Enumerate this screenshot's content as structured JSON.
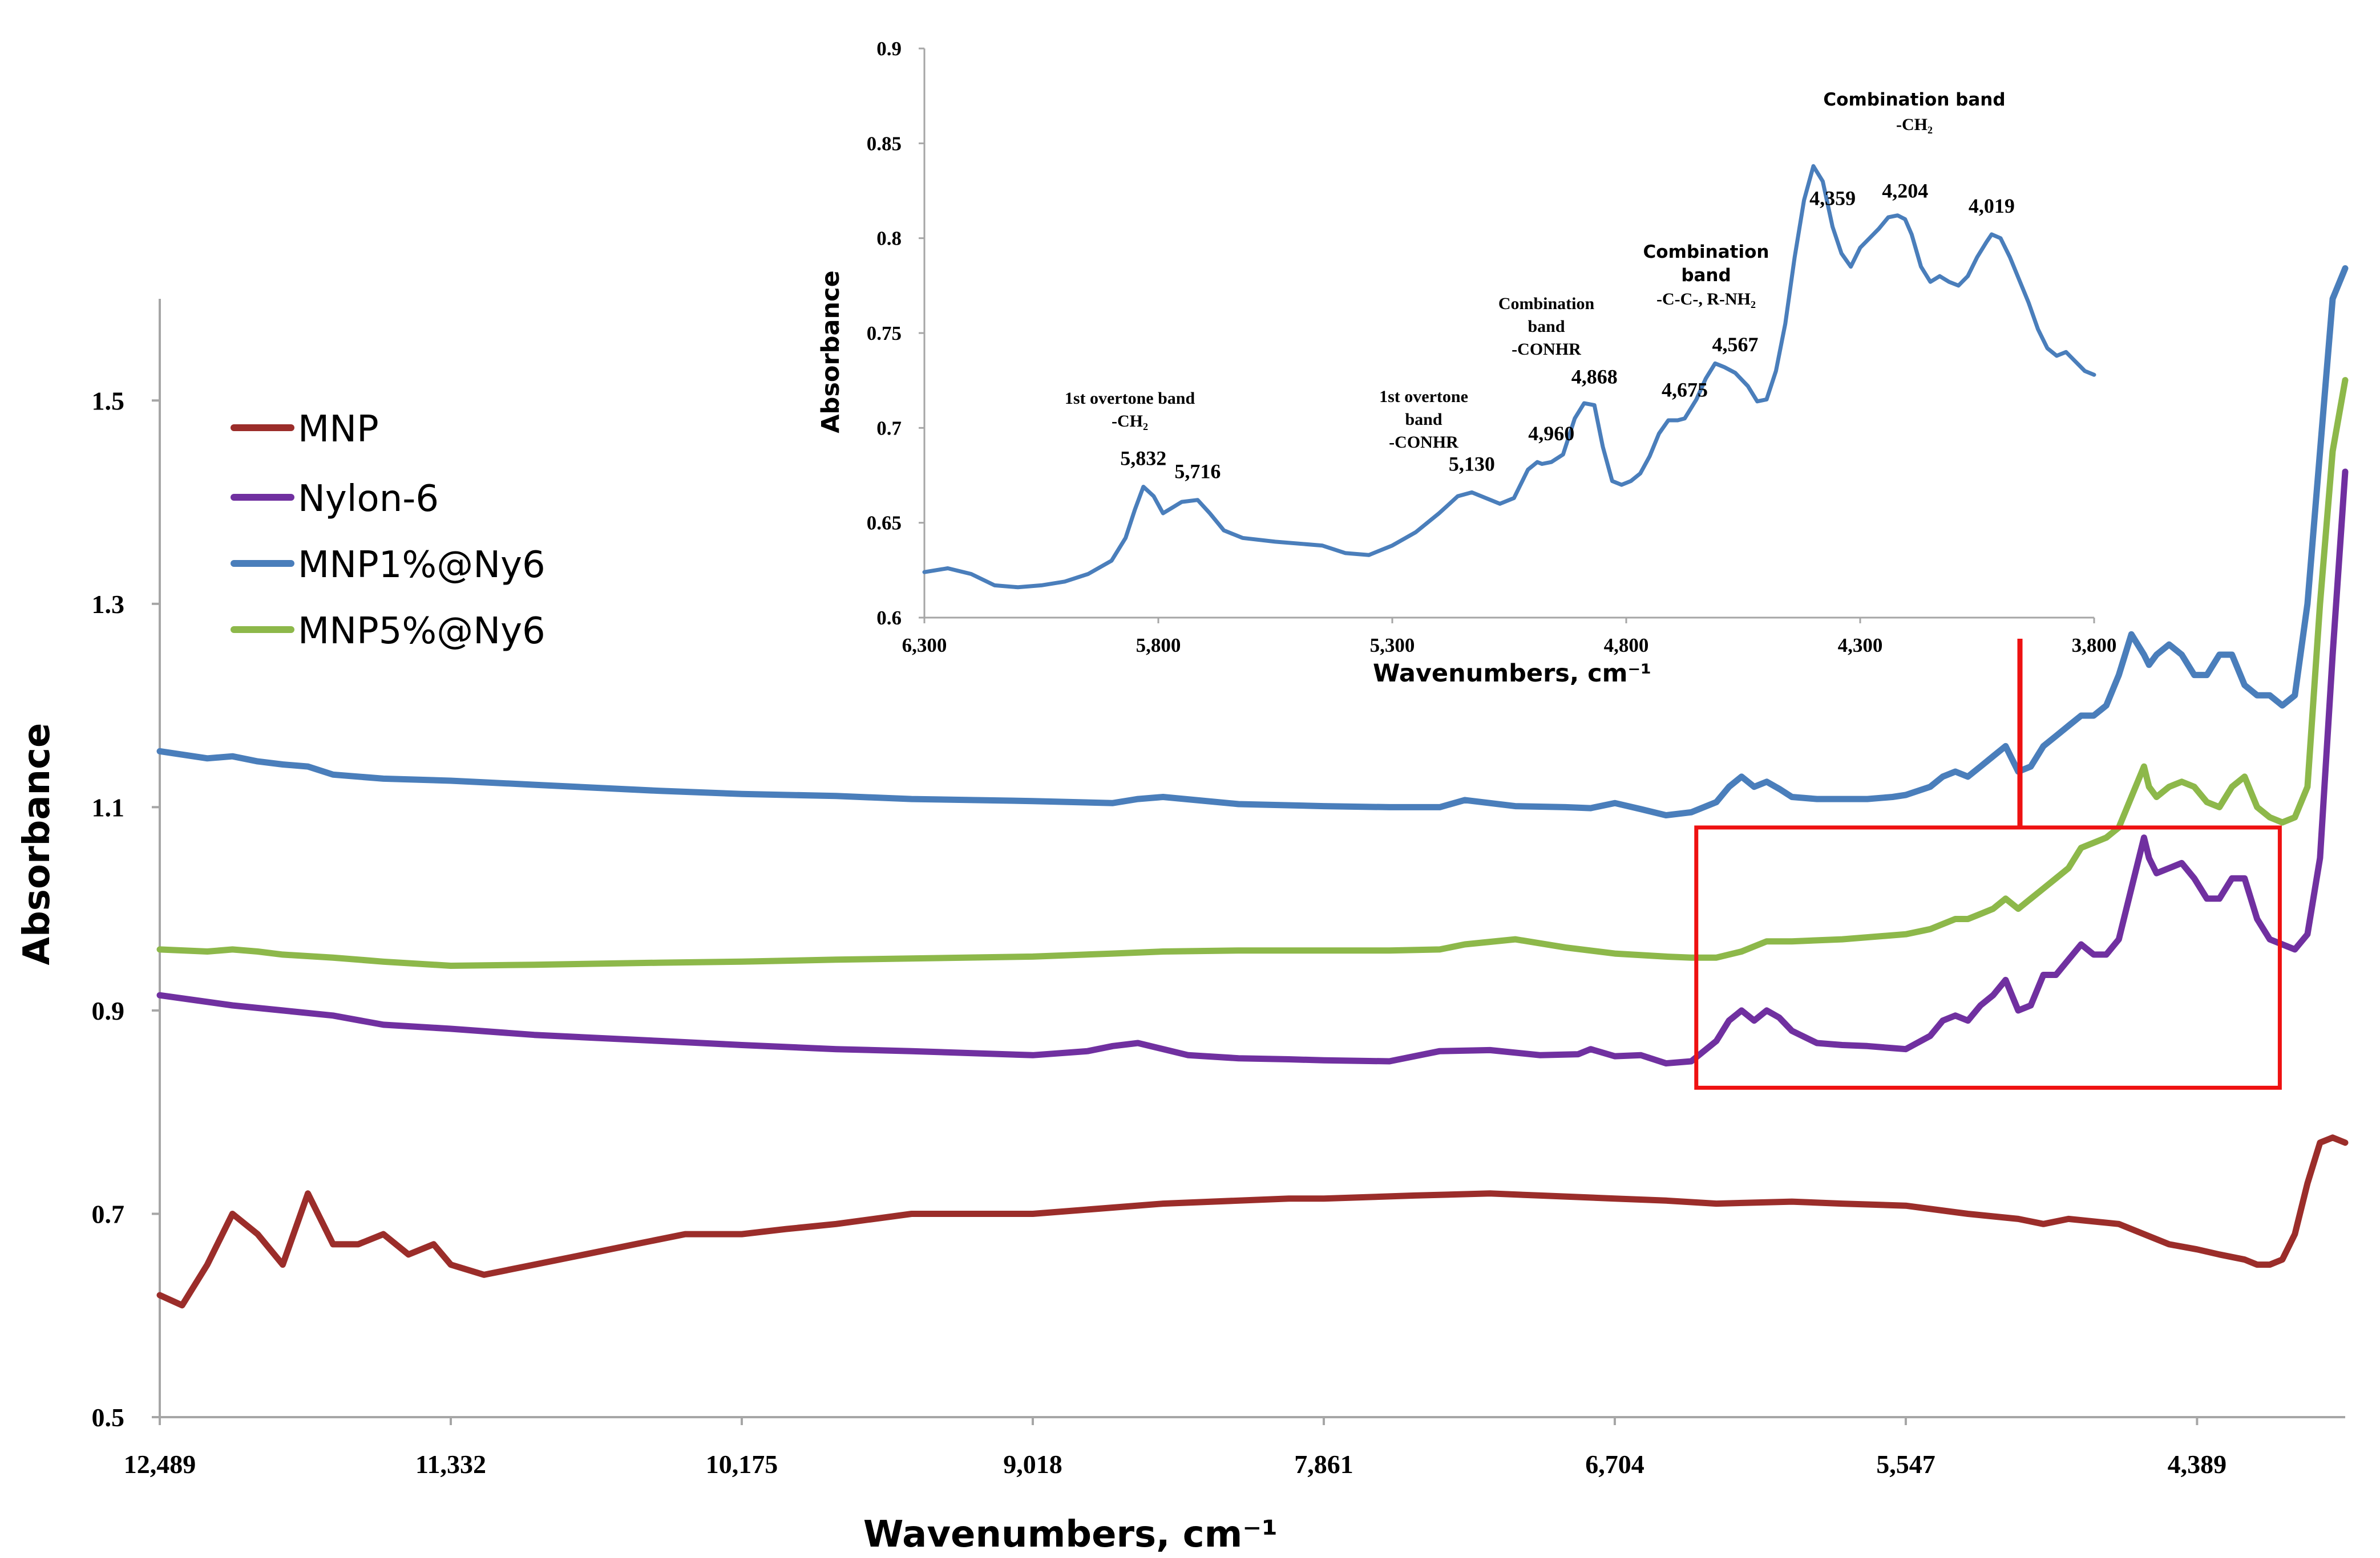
{
  "colors": {
    "MNP": "#9b2d2a",
    "Nylon-6": "#7030a0",
    "MNP1%@Ny6": "#4a7ebb",
    "MNP5%@Ny6": "#8db84a",
    "highlight": "#ee1111",
    "axis": "#a6a6a6"
  },
  "chart_data": [
    {
      "type": "line",
      "panel": "main",
      "xlabel": "Wavenumbers, cm⁻¹",
      "ylabel": "Absorbance",
      "xlim": [
        12489,
        3800
      ],
      "ylim": [
        0.5,
        1.6
      ],
      "x_ticks": [
        "12,489",
        "11,332",
        "10,175",
        "9,018",
        "7,861",
        "6,704",
        "5,547",
        "4,389"
      ],
      "y_ticks": [
        "0.5",
        "0.7",
        "0.9",
        "1.1",
        "1.3",
        "1.5"
      ],
      "legend_position": "top-left",
      "highlight_box": {
        "x_range": [
          6380,
          4060
        ],
        "y_range": [
          0.824,
          1.08
        ]
      },
      "series": [
        {
          "name": "MNP",
          "x": [
            12489,
            12400,
            12300,
            12200,
            12100,
            12000,
            11900,
            11800,
            11700,
            11600,
            11500,
            11400,
            11332,
            11200,
            11000,
            10800,
            10600,
            10400,
            10175,
            10000,
            9800,
            9500,
            9018,
            8500,
            8000,
            7861,
            7500,
            7200,
            7000,
            6704,
            6500,
            6300,
            6000,
            5800,
            5547,
            5300,
            5100,
            5000,
            4900,
            4700,
            4500,
            4389,
            4300,
            4200,
            4150,
            4100,
            4050,
            4000,
            3950,
            3900,
            3850,
            3800
          ],
          "y": [
            0.62,
            0.61,
            0.65,
            0.7,
            0.68,
            0.65,
            0.72,
            0.67,
            0.67,
            0.68,
            0.66,
            0.67,
            0.65,
            0.64,
            0.65,
            0.66,
            0.67,
            0.68,
            0.68,
            0.685,
            0.69,
            0.7,
            0.7,
            0.71,
            0.715,
            0.715,
            0.718,
            0.72,
            0.718,
            0.715,
            0.713,
            0.71,
            0.712,
            0.71,
            0.708,
            0.7,
            0.695,
            0.69,
            0.695,
            0.69,
            0.67,
            0.665,
            0.66,
            0.655,
            0.65,
            0.65,
            0.655,
            0.68,
            0.73,
            0.77,
            0.775,
            0.77
          ]
        },
        {
          "name": "Nylon-6",
          "x": [
            12489,
            12200,
            12000,
            11800,
            11600,
            11332,
            11000,
            10500,
            10175,
            9800,
            9500,
            9018,
            8800,
            8700,
            8600,
            8400,
            8200,
            8000,
            7861,
            7600,
            7400,
            7200,
            7000,
            6850,
            6800,
            6704,
            6600,
            6500,
            6400,
            6300,
            6250,
            6200,
            6150,
            6100,
            6050,
            6000,
            5900,
            5800,
            5700,
            5600,
            5547,
            5450,
            5400,
            5350,
            5300,
            5250,
            5200,
            5150,
            5100,
            5050,
            5000,
            4950,
            4900,
            4850,
            4800,
            4750,
            4700,
            4650,
            4600,
            4580,
            4550,
            4500,
            4450,
            4400,
            4350,
            4300,
            4250,
            4200,
            4150,
            4100,
            4050,
            4000,
            3950,
            3900,
            3850,
            3800
          ],
          "y": [
            0.915,
            0.905,
            0.9,
            0.895,
            0.886,
            0.882,
            0.876,
            0.87,
            0.866,
            0.862,
            0.86,
            0.856,
            0.86,
            0.865,
            0.868,
            0.856,
            0.853,
            0.852,
            0.851,
            0.85,
            0.86,
            0.861,
            0.856,
            0.857,
            0.862,
            0.855,
            0.856,
            0.848,
            0.85,
            0.87,
            0.89,
            0.9,
            0.89,
            0.9,
            0.893,
            0.88,
            0.868,
            0.866,
            0.865,
            0.863,
            0.862,
            0.875,
            0.89,
            0.895,
            0.89,
            0.905,
            0.915,
            0.93,
            0.9,
            0.905,
            0.935,
            0.935,
            0.95,
            0.965,
            0.955,
            0.955,
            0.97,
            1.02,
            1.07,
            1.05,
            1.035,
            1.04,
            1.045,
            1.03,
            1.01,
            1.01,
            1.03,
            1.03,
            0.99,
            0.97,
            0.965,
            0.96,
            0.975,
            1.05,
            1.25,
            1.43
          ]
        },
        {
          "name": "MNP1%@Ny6",
          "x": [
            12489,
            12300,
            12200,
            12100,
            12000,
            11900,
            11800,
            11600,
            11332,
            11000,
            10500,
            10175,
            9800,
            9500,
            9018,
            8700,
            8600,
            8500,
            8200,
            7861,
            7600,
            7400,
            7300,
            7100,
            6900,
            6800,
            6704,
            6600,
            6500,
            6400,
            6300,
            6250,
            6200,
            6150,
            6100,
            6050,
            6000,
            5900,
            5800,
            5700,
            5600,
            5547,
            5450,
            5400,
            5350,
            5300,
            5250,
            5200,
            5150,
            5100,
            5050,
            5000,
            4950,
            4900,
            4850,
            4800,
            4750,
            4700,
            4650,
            4600,
            4580,
            4550,
            4500,
            4450,
            4400,
            4350,
            4300,
            4250,
            4200,
            4150,
            4100,
            4050,
            4000,
            3950,
            3900,
            3850,
            3800
          ],
          "y": [
            1.155,
            1.148,
            1.15,
            1.145,
            1.142,
            1.14,
            1.132,
            1.128,
            1.126,
            1.122,
            1.116,
            1.113,
            1.111,
            1.108,
            1.106,
            1.104,
            1.108,
            1.11,
            1.103,
            1.101,
            1.1,
            1.1,
            1.107,
            1.101,
            1.1,
            1.099,
            1.104,
            1.098,
            1.092,
            1.095,
            1.105,
            1.12,
            1.13,
            1.12,
            1.125,
            1.118,
            1.11,
            1.108,
            1.108,
            1.108,
            1.11,
            1.112,
            1.12,
            1.13,
            1.135,
            1.13,
            1.14,
            1.15,
            1.16,
            1.135,
            1.14,
            1.16,
            1.17,
            1.18,
            1.19,
            1.19,
            1.2,
            1.23,
            1.27,
            1.25,
            1.24,
            1.25,
            1.26,
            1.25,
            1.23,
            1.23,
            1.25,
            1.25,
            1.22,
            1.21,
            1.21,
            1.2,
            1.21,
            1.3,
            1.45,
            1.6,
            1.63
          ]
        },
        {
          "name": "MNP5%@Ny6",
          "x": [
            12489,
            12300,
            12200,
            12100,
            12000,
            11800,
            11600,
            11332,
            11000,
            10500,
            10175,
            9800,
            9018,
            8700,
            8500,
            8200,
            7861,
            7600,
            7400,
            7300,
            7100,
            6900,
            6704,
            6500,
            6400,
            6300,
            6200,
            6100,
            6000,
            5800,
            5547,
            5450,
            5400,
            5350,
            5300,
            5250,
            5200,
            5150,
            5100,
            5050,
            5000,
            4950,
            4900,
            4850,
            4800,
            4750,
            4700,
            4650,
            4600,
            4580,
            4550,
            4500,
            4450,
            4400,
            4350,
            4300,
            4250,
            4200,
            4150,
            4100,
            4050,
            4000,
            3950,
            3900,
            3850,
            3800
          ],
          "y": [
            0.96,
            0.958,
            0.96,
            0.958,
            0.955,
            0.952,
            0.948,
            0.944,
            0.945,
            0.947,
            0.948,
            0.95,
            0.953,
            0.956,
            0.958,
            0.959,
            0.959,
            0.959,
            0.96,
            0.965,
            0.97,
            0.962,
            0.956,
            0.953,
            0.952,
            0.952,
            0.958,
            0.968,
            0.968,
            0.97,
            0.975,
            0.98,
            0.985,
            0.99,
            0.99,
            0.995,
            1.0,
            1.01,
            1.0,
            1.01,
            1.02,
            1.03,
            1.04,
            1.06,
            1.065,
            1.07,
            1.08,
            1.11,
            1.14,
            1.12,
            1.11,
            1.12,
            1.125,
            1.12,
            1.105,
            1.1,
            1.12,
            1.13,
            1.1,
            1.09,
            1.085,
            1.09,
            1.12,
            1.3,
            1.45,
            1.52
          ]
        }
      ]
    },
    {
      "type": "line",
      "panel": "inset",
      "xlabel": "Wavenumbers, cm⁻¹",
      "ylabel": "Absorbance",
      "xlim": [
        6300,
        3800
      ],
      "ylim": [
        0.6,
        0.9
      ],
      "x_ticks": [
        "6,300",
        "5,800",
        "5,300",
        "4,800",
        "4,300",
        "3,800"
      ],
      "x_tick_values": [
        6300,
        5800,
        5300,
        4800,
        4300,
        3800
      ],
      "y_ticks": [
        "0.6",
        "0.65",
        "0.7",
        "0.75",
        "0.8",
        "0.85",
        "0.9"
      ],
      "y_tick_values": [
        0.6,
        0.65,
        0.7,
        0.75,
        0.8,
        0.85,
        0.9
      ],
      "series": [
        {
          "name": "MNP1%@Ny6",
          "x": [
            6300,
            6250,
            6200,
            6150,
            6100,
            6050,
            6000,
            5950,
            5900,
            5870,
            5850,
            5832,
            5810,
            5790,
            5770,
            5750,
            5716,
            5690,
            5660,
            5620,
            5550,
            5450,
            5400,
            5350,
            5300,
            5250,
            5200,
            5160,
            5130,
            5100,
            5070,
            5040,
            5010,
            4990,
            4980,
            4960,
            4935,
            4910,
            4890,
            4868,
            4850,
            4830,
            4810,
            4790,
            4770,
            4750,
            4730,
            4710,
            4690,
            4675,
            4650,
            4630,
            4610,
            4590,
            4567,
            4540,
            4520,
            4500,
            4480,
            4460,
            4440,
            4420,
            4400,
            4380,
            4359,
            4340,
            4320,
            4300,
            4280,
            4260,
            4240,
            4220,
            4204,
            4190,
            4170,
            4150,
            4130,
            4110,
            4090,
            4070,
            4050,
            4030,
            4019,
            4000,
            3980,
            3960,
            3940,
            3920,
            3900,
            3880,
            3860,
            3840,
            3820,
            3800
          ],
          "y": [
            0.624,
            0.626,
            0.623,
            0.617,
            0.616,
            0.617,
            0.619,
            0.623,
            0.63,
            0.642,
            0.657,
            0.669,
            0.664,
            0.655,
            0.658,
            0.661,
            0.662,
            0.655,
            0.646,
            0.642,
            0.64,
            0.638,
            0.634,
            0.633,
            0.638,
            0.645,
            0.655,
            0.664,
            0.666,
            0.663,
            0.66,
            0.663,
            0.678,
            0.682,
            0.681,
            0.682,
            0.686,
            0.705,
            0.713,
            0.712,
            0.69,
            0.672,
            0.67,
            0.672,
            0.676,
            0.685,
            0.697,
            0.704,
            0.704,
            0.705,
            0.715,
            0.726,
            0.734,
            0.732,
            0.729,
            0.722,
            0.714,
            0.715,
            0.73,
            0.755,
            0.79,
            0.82,
            0.838,
            0.83,
            0.806,
            0.792,
            0.785,
            0.795,
            0.8,
            0.805,
            0.811,
            0.812,
            0.81,
            0.802,
            0.785,
            0.777,
            0.78,
            0.777,
            0.775,
            0.78,
            0.79,
            0.798,
            0.802,
            0.8,
            0.79,
            0.778,
            0.766,
            0.752,
            0.742,
            0.738,
            0.74,
            0.735,
            0.73,
            0.728
          ]
        }
      ],
      "peak_labels": [
        {
          "x": 5832,
          "label": "5,832"
        },
        {
          "x": 5716,
          "label": "5,716"
        },
        {
          "x": 5130,
          "label": "5,130"
        },
        {
          "x": 4960,
          "label": "4,960"
        },
        {
          "x": 4868,
          "label": "4,868"
        },
        {
          "x": 4675,
          "label": "4,675"
        },
        {
          "x": 4567,
          "label": "4,567"
        },
        {
          "x": 4359,
          "label": "4,359"
        },
        {
          "x": 4204,
          "label": "4,204"
        },
        {
          "x": 4019,
          "label": "4,019"
        }
      ],
      "band_annotations": [
        {
          "lines": [
            "1st overtone band",
            "-CH₂"
          ]
        },
        {
          "lines": [
            "1st overtone",
            "band",
            "-CONHR"
          ]
        },
        {
          "lines": [
            "Combination",
            "band",
            "-CONHR"
          ]
        },
        {
          "lines": [
            "Combination",
            "band",
            "-C-C-, R-NH₂"
          ]
        },
        {
          "lines": [
            "Combination band",
            "-CH₂"
          ]
        }
      ]
    }
  ]
}
